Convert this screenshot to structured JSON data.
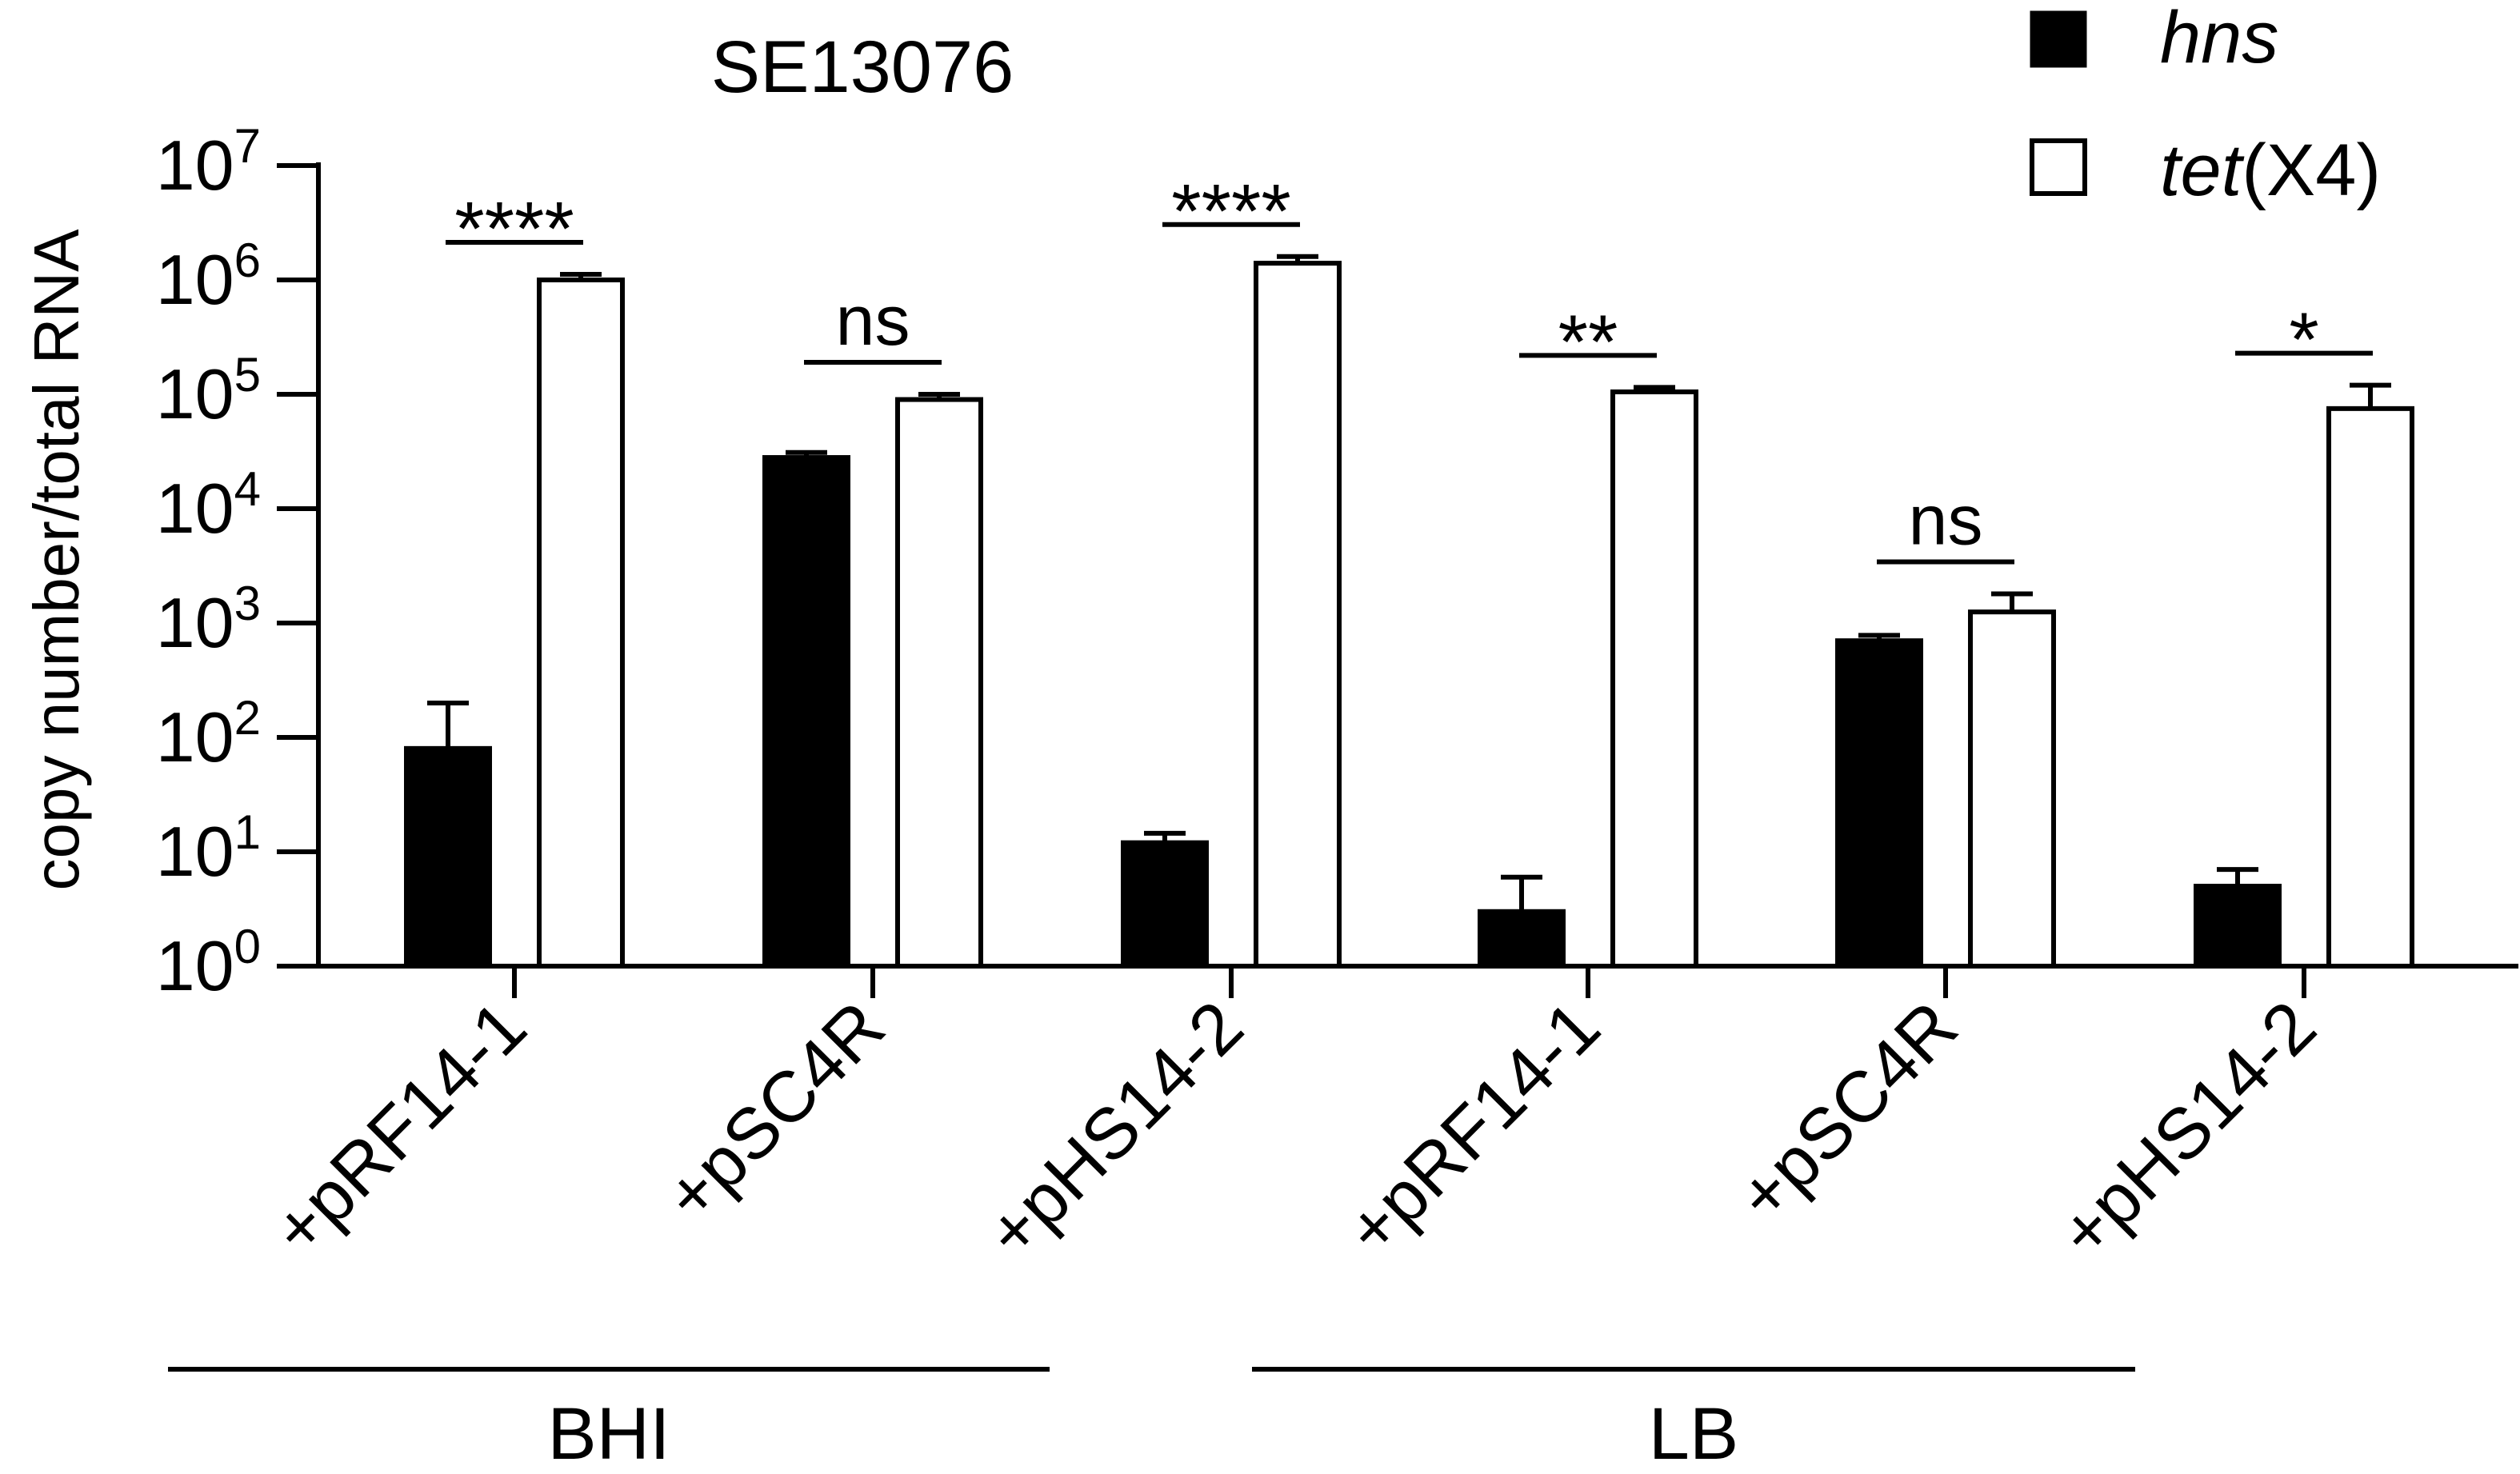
{
  "chart_data": {
    "type": "bar",
    "title": "SE13076",
    "ylabel": "copy number/total RNA",
    "yscale": "log",
    "ylim": [
      1,
      10000000
    ],
    "ytick_exponents": [
      "0",
      "1",
      "2",
      "3",
      "4",
      "5",
      "6",
      "7"
    ],
    "ytick_base": "10",
    "categories": [
      "+pRF14-1",
      "+pSC4R",
      "+pHS14-2",
      "+pRF14-1",
      "+pSC4R",
      "+pHS14-2"
    ],
    "groups": [
      {
        "label": "BHI",
        "categories": [
          "+pRF14-1",
          "+pSC4R",
          "+pHS14-2"
        ]
      },
      {
        "label": "LB",
        "categories": [
          "+pRF14-1",
          "+pSC4R",
          "+pHS14-2"
        ]
      }
    ],
    "series": [
      {
        "name": "hns",
        "name_style": "italic",
        "fill": "#000000",
        "values": [
          80,
          28000,
          12,
          3,
          700,
          5
        ],
        "errors_upper": [
          200,
          31000,
          14.5,
          6,
          780,
          7
        ]
      },
      {
        "name": "tet(X4)",
        "name_parts": [
          {
            "text": "tet",
            "italic": true
          },
          {
            "text": "(X4)",
            "italic": false
          }
        ],
        "fill": "#ffffff",
        "values": [
          1000000,
          90000,
          1400000,
          105000,
          1250,
          75000
        ],
        "errors_upper": [
          1120000,
          100000,
          1600000,
          115000,
          1800,
          120000
        ]
      }
    ],
    "significance": [
      "****",
      "ns",
      "****",
      "**",
      "ns",
      "*"
    ],
    "legend_position": "top-right",
    "grid": false
  }
}
